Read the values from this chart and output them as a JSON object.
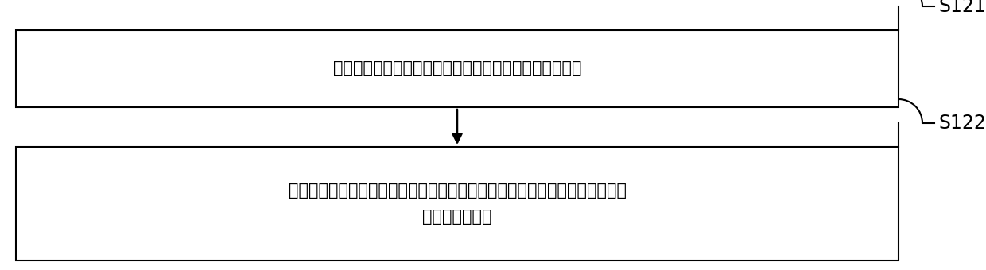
{
  "box1_text": "根据第一点击指令确定在二维平面内的管口参考点坐标；",
  "box2_line1": "接收坐标修正值，并根据所述管口参考点坐标值和所述坐标修正值计算得到管",
  "box2_line2": "口定点坐标值。",
  "label1": "S121",
  "label2": "S122",
  "bg_color": "#ffffff",
  "box_edge_color": "#000000",
  "text_color": "#000000",
  "font_size": 15,
  "label_font_size": 17,
  "fig_width": 12.4,
  "fig_height": 3.4
}
